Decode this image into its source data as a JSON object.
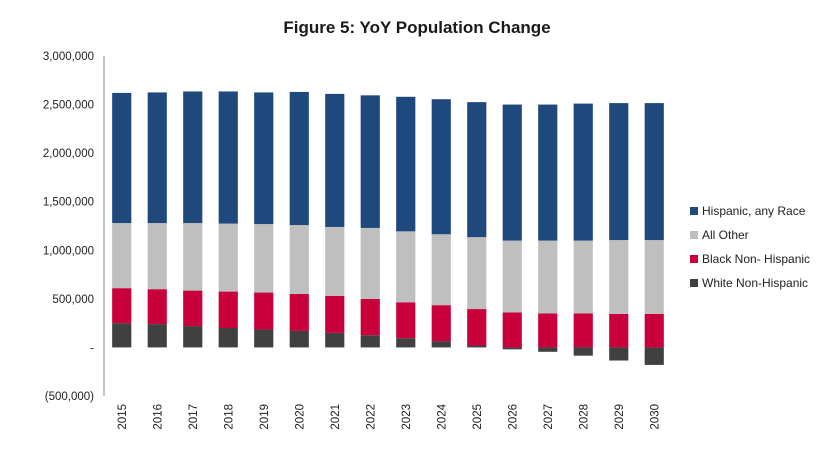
{
  "chart_data": {
    "type": "bar",
    "stacked": true,
    "title": "Figure 5: YoY Population Change",
    "xlabel": "",
    "ylabel": "",
    "categories": [
      "2015",
      "2016",
      "2017",
      "2018",
      "2019",
      "2020",
      "2021",
      "2022",
      "2023",
      "2024",
      "2025",
      "2026",
      "2027",
      "2028",
      "2029",
      "2030"
    ],
    "ylim": [
      -500000,
      3000000
    ],
    "yticks": [
      -500000,
      0,
      500000,
      1000000,
      1500000,
      2000000,
      2500000,
      3000000
    ],
    "ytick_labels": [
      "(500,000)",
      "-",
      "500,000",
      "1,000,000",
      "1,500,000",
      "2,000,000",
      "2,500,000",
      "3,000,000"
    ],
    "grid": false,
    "legend_position": "right",
    "series": [
      {
        "name": "White Non-Hispanic",
        "color": "#404040",
        "values": [
          250000,
          240000,
          220000,
          200000,
          185000,
          170000,
          150000,
          125000,
          95000,
          65000,
          20000,
          -20000,
          -45000,
          -85000,
          -135000,
          -180000
        ]
      },
      {
        "name": "Black Non- Hispanic",
        "color": "#c8003c",
        "values": [
          360000,
          360000,
          365000,
          375000,
          380000,
          380000,
          380000,
          375000,
          370000,
          370000,
          375000,
          360000,
          350000,
          350000,
          345000,
          345000
        ]
      },
      {
        "name": "All Other",
        "color": "#bfbfbf",
        "values": [
          670000,
          680000,
          695000,
          700000,
          705000,
          710000,
          710000,
          730000,
          730000,
          730000,
          740000,
          740000,
          750000,
          750000,
          760000,
          760000
        ]
      },
      {
        "name": "Hispanic, any Race",
        "color": "#1f497d",
        "values": [
          1340000,
          1345000,
          1355000,
          1360000,
          1355000,
          1370000,
          1370000,
          1365000,
          1385000,
          1390000,
          1390000,
          1400000,
          1400000,
          1410000,
          1410000,
          1410000
        ]
      }
    ],
    "legend_order": [
      "Hispanic, any Race",
      "All Other",
      "Black Non- Hispanic",
      "White Non-Hispanic"
    ]
  }
}
